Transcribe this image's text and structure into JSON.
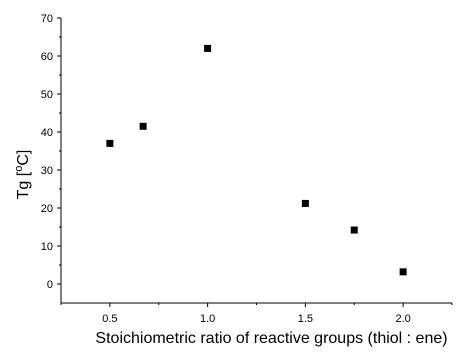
{
  "chart_data": {
    "type": "scatter",
    "xlabel": "Stoichiometric ratio of reactive groups (thiol : ene)",
    "ylabel": {
      "prefix": "Tg [",
      "superscript": "o",
      "suffix": "C]"
    },
    "xlim": [
      0.25,
      2.25
    ],
    "ylim": [
      -5,
      70
    ],
    "xticks": [
      0.5,
      1.0,
      1.5,
      2.0
    ],
    "xtick_labels": [
      "0.5",
      "1.0",
      "1.5",
      "2.0"
    ],
    "yticks": [
      0,
      10,
      20,
      30,
      40,
      50,
      60,
      70
    ],
    "ytick_labels": [
      "0",
      "10",
      "20",
      "30",
      "40",
      "50",
      "60",
      "70"
    ],
    "grid": false,
    "legend": "none",
    "marker": "square",
    "colors": {
      "marker": "#000000",
      "axis": "#000000"
    },
    "series": [
      {
        "x": [
          0.5,
          0.67,
          1.0,
          1.5,
          1.75,
          2.0
        ],
        "y": [
          37,
          41.5,
          62,
          21.2,
          14.2,
          3.2
        ]
      }
    ]
  }
}
